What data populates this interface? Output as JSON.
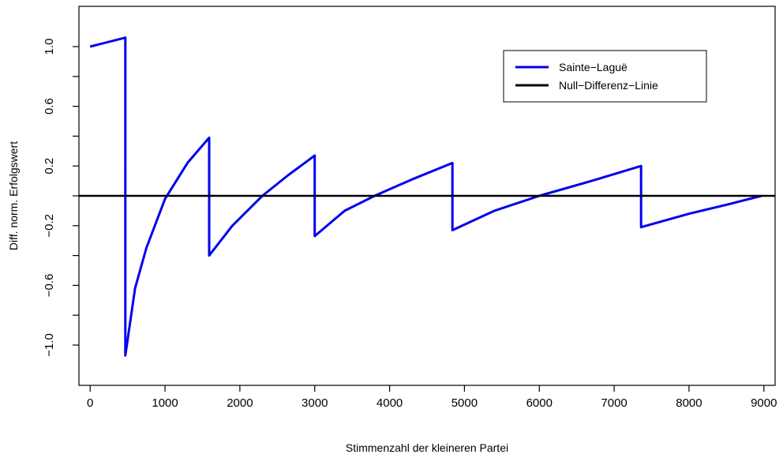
{
  "chart_data": {
    "type": "line",
    "title": "",
    "xlabel": "Stimmenzahl der kleineren Partei",
    "ylabel": "Diff. norm. Erfolgswert",
    "xlim": [
      -150,
      9150
    ],
    "ylim": [
      -1.27,
      1.27
    ],
    "x_ticks": [
      0,
      1000,
      2000,
      3000,
      4000,
      5000,
      6000,
      7000,
      8000,
      9000
    ],
    "x_tick_labels": [
      "0",
      "1000",
      "2000",
      "3000",
      "4000",
      "5000",
      "6000",
      "7000",
      "8000",
      "9000"
    ],
    "y_ticks": [
      1.0,
      0.6,
      0.2,
      -0.2,
      -0.6,
      -1.0
    ],
    "y_tick_labels": [
      "1.0",
      "0.6",
      "0.2",
      "−0.2",
      "−0.6",
      "−1.0"
    ],
    "y_minor_ticks": [
      0.8,
      0.4,
      0.0,
      -0.4,
      -0.8
    ],
    "series": [
      {
        "name": "Sainte−Laguë",
        "color": "#0000ee",
        "points": [
          [
            0,
            1.0
          ],
          [
            470,
            1.06
          ],
          [
            470,
            -1.07
          ],
          [
            600,
            -0.62
          ],
          [
            750,
            -0.35
          ],
          [
            1000,
            -0.02
          ],
          [
            1300,
            0.22
          ],
          [
            1590,
            0.39
          ],
          [
            1590,
            -0.4
          ],
          [
            1900,
            -0.2
          ],
          [
            2300,
            0.0
          ],
          [
            2650,
            0.14
          ],
          [
            3000,
            0.27
          ],
          [
            3000,
            -0.27
          ],
          [
            3400,
            -0.1
          ],
          [
            3800,
            0.0
          ],
          [
            4300,
            0.11
          ],
          [
            4840,
            0.22
          ],
          [
            4840,
            -0.23
          ],
          [
            5400,
            -0.1
          ],
          [
            6000,
            0.0
          ],
          [
            6700,
            0.1
          ],
          [
            7360,
            0.2
          ],
          [
            7360,
            -0.21
          ],
          [
            8000,
            -0.12
          ],
          [
            8500,
            -0.06
          ],
          [
            8970,
            0.0
          ]
        ]
      },
      {
        "name": "Null−Differenz−Linie",
        "color": "#000000",
        "points": [
          [
            -150,
            0
          ],
          [
            9150,
            0
          ]
        ]
      }
    ],
    "legend_position": "top-right",
    "grid": false
  }
}
